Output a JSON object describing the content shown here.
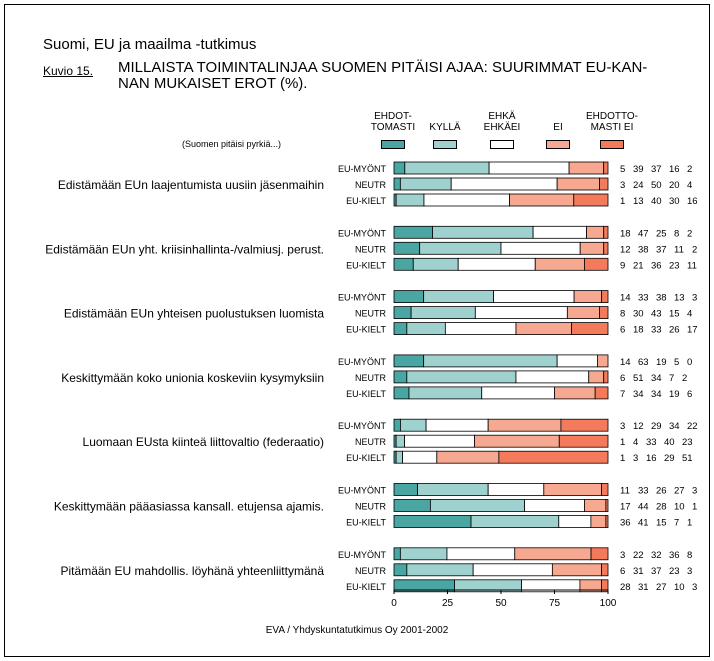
{
  "header": {
    "title": "Suomi, EU ja maailma -tutkimus",
    "figure_label": "Kuvio 15.",
    "figure_title_line1": "MILLAISTA TOIMINTALINJAA SUOMEN PITÄISI AJAA: SUURIMMAT EU-KAN-",
    "figure_title_line2": "NAN MUKAISET EROT (%)."
  },
  "prefix_note": "(Suomen pitäisi pyrkiä...)",
  "footer": "EVA / Yhdyskuntatutkimus Oy 2001-2002",
  "colors": {
    "ehdottomasti": "#4aa6a2",
    "kylla": "#9fd1cf",
    "ehka": "#ffffff",
    "ei": "#f7a891",
    "ehdottomasti_ei": "#f47a5c"
  },
  "chart_data": {
    "type": "bar",
    "orientation": "horizontal",
    "stacked": true,
    "xlim": [
      0,
      100
    ],
    "xticks": [
      0,
      25,
      50,
      75,
      100
    ],
    "legend": {
      "position": "top",
      "labels": [
        {
          "line1": "EHDOT-",
          "line2": "TOMASTI"
        },
        {
          "line1": "KYLLÄ",
          "line2": ""
        },
        {
          "line1": "EHKÄ",
          "line2": "EHKÄEI"
        },
        {
          "line1": "EI",
          "line2": ""
        },
        {
          "line1": "EHDOTTO-",
          "line2": "MASTI EI"
        }
      ]
    },
    "groups": [
      {
        "label": "Edistämään EUn laajentumista uusiin jäsenmaihin",
        "rows": [
          {
            "name": "EU-MYÖNT",
            "values": [
              5,
              39,
              37,
              16,
              2
            ],
            "labels": [
              "5",
              "39",
              "37",
              "16",
              "2"
            ]
          },
          {
            "name": "NEUTR",
            "values": [
              3,
              24,
              50,
              20,
              4
            ],
            "labels": [
              "3",
              "24",
              "50",
              "20",
              "4"
            ]
          },
          {
            "name": "EU-KIELT",
            "values": [
              1,
              13,
              40,
              30,
              16
            ],
            "labels": [
              "1",
              "13",
              "40",
              "30",
              "16"
            ]
          }
        ]
      },
      {
        "label": "Edistämään EUn yht. kriisinhallinta-/valmiusj. perust.",
        "rows": [
          {
            "name": "EU-MYÖNT",
            "values": [
              18,
              47,
              25,
              8,
              2
            ],
            "labels": [
              "18",
              "47",
              "25",
              "8",
              "2"
            ]
          },
          {
            "name": "NEUTR",
            "values": [
              12,
              38,
              37,
              11,
              2
            ],
            "labels": [
              "12",
              "38",
              "37",
              "11",
              "2"
            ]
          },
          {
            "name": "EU-KIELT",
            "values": [
              9,
              21,
              36,
              23,
              11
            ],
            "labels": [
              "9",
              "21",
              "36",
              "23",
              "11"
            ]
          }
        ]
      },
      {
        "label": "Edistämään EUn yhteisen puolustuksen luomista",
        "rows": [
          {
            "name": "EU-MYÖNT",
            "values": [
              14,
              33,
              38,
              13,
              3
            ],
            "labels": [
              "14",
              "33",
              "38",
              "13",
              "3"
            ]
          },
          {
            "name": "NEUTR",
            "values": [
              8,
              30,
              43,
              15,
              4
            ],
            "labels": [
              "8",
              "30",
              "43",
              "15",
              "4"
            ]
          },
          {
            "name": "EU-KIELT",
            "values": [
              6,
              18,
              33,
              26,
              17
            ],
            "labels": [
              "6",
              "18",
              "33",
              "26",
              "17"
            ]
          }
        ]
      },
      {
        "label": "Keskittymään koko unionia koskeviin kysymyksiin",
        "rows": [
          {
            "name": "EU-MYÖNT",
            "values": [
              14,
              63,
              19,
              5,
              0
            ],
            "labels": [
              "14",
              "63",
              "19",
              "5",
              "0"
            ]
          },
          {
            "name": "NEUTR",
            "values": [
              6,
              51,
              34,
              7,
              2
            ],
            "labels": [
              "6",
              "51",
              "34",
              "7",
              "2"
            ]
          },
          {
            "name": "EU-KIELT",
            "values": [
              7,
              34,
              34,
              19,
              6
            ],
            "labels": [
              "7",
              "34",
              "34",
              "19",
              "6"
            ]
          }
        ]
      },
      {
        "label": "Luomaan EUsta kiinteä liittovaltio (federaatio)",
        "rows": [
          {
            "name": "EU-MYÖNT",
            "values": [
              3,
              12,
              29,
              34,
              22
            ],
            "labels": [
              "3",
              "12",
              "29",
              "34",
              "22"
            ]
          },
          {
            "name": "NEUTR",
            "values": [
              1,
              4,
              33,
              40,
              23
            ],
            "labels": [
              "1",
              "4",
              "33",
              "40",
              "23"
            ]
          },
          {
            "name": "EU-KIELT",
            "values": [
              1,
              3,
              16,
              29,
              51
            ],
            "labels": [
              "1",
              "3",
              "16",
              "29",
              "51"
            ]
          }
        ]
      },
      {
        "label": "Keskittymään pääasiassa kansall. etujensa ajamis.",
        "rows": [
          {
            "name": "EU-MYÖNT",
            "values": [
              11,
              33,
              26,
              27,
              3
            ],
            "labels": [
              "11",
              "33",
              "26",
              "27",
              "3"
            ]
          },
          {
            "name": "NEUTR",
            "values": [
              17,
              44,
              28,
              10,
              1
            ],
            "labels": [
              "17",
              "44",
              "28",
              "10",
              "1"
            ]
          },
          {
            "name": "EU-KIELT",
            "values": [
              36,
              41,
              15,
              7,
              1
            ],
            "labels": [
              "36",
              "41",
              "15",
              "7",
              "1"
            ]
          }
        ]
      },
      {
        "label": "Pitämään EU mahdollis. löyhänä yhteenliittymänä",
        "rows": [
          {
            "name": "EU-MYÖNT",
            "values": [
              3,
              22,
              32,
              36,
              8
            ],
            "labels": [
              "3",
              "22",
              "32",
              "36",
              "8"
            ]
          },
          {
            "name": "NEUTR",
            "values": [
              6,
              31,
              37,
              23,
              3
            ],
            "labels": [
              "6",
              "31",
              "37",
              "23",
              "3"
            ]
          },
          {
            "name": "EU-KIELT",
            "values": [
              28,
              31,
              27,
              10,
              3
            ],
            "labels": [
              "28",
              "31",
              "27",
              "10",
              "3"
            ]
          }
        ]
      }
    ]
  }
}
